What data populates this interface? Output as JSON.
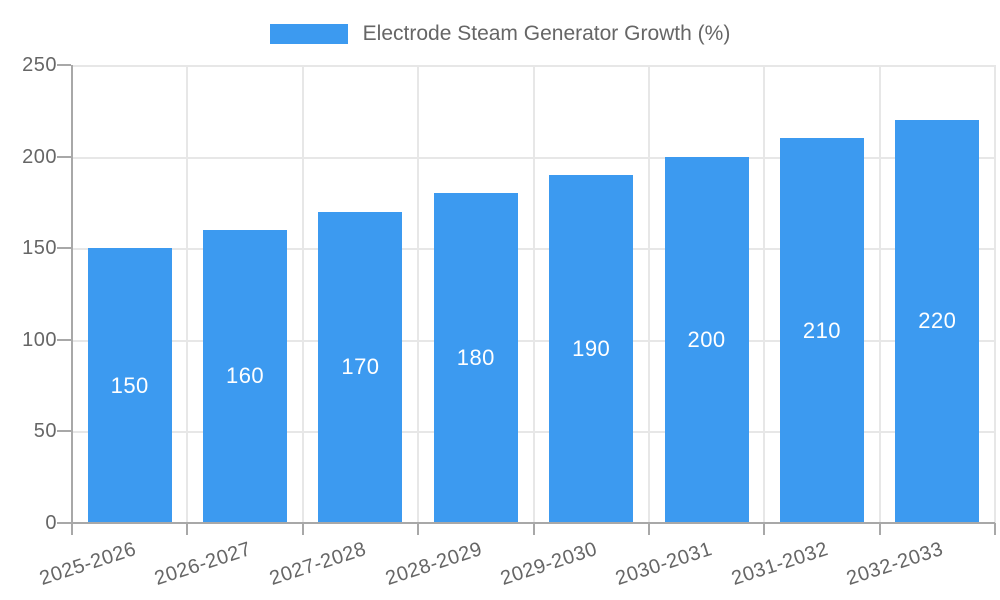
{
  "legend": {
    "label": "Electrode Steam Generator Growth (%)"
  },
  "chart_data": {
    "type": "bar",
    "title": "Electrode Steam Generator Growth (%)",
    "series_name": "Electrode Steam Generator Growth (%)",
    "categories": [
      "2025-2026",
      "2026-2027",
      "2027-2028",
      "2028-2029",
      "2029-2030",
      "2030-2031",
      "2031-2032",
      "2032-2033"
    ],
    "values": [
      150,
      160,
      170,
      180,
      190,
      200,
      210,
      220
    ],
    "value_labels": [
      "150",
      "160",
      "170",
      "180",
      "190",
      "200",
      "210",
      "220"
    ],
    "xlabel": "",
    "ylabel": "",
    "ylim": [
      0,
      250
    ],
    "yticks": [
      0,
      50,
      100,
      150,
      200,
      250
    ],
    "grid": true,
    "legend_position": "top",
    "colors": {
      "bar": "#3c9af0",
      "value_label": "#ffffff",
      "axis_text": "#666666",
      "grid_line": "#e7e7e7",
      "axis_line": "#a8a8a8",
      "background": "#ffffff"
    }
  }
}
